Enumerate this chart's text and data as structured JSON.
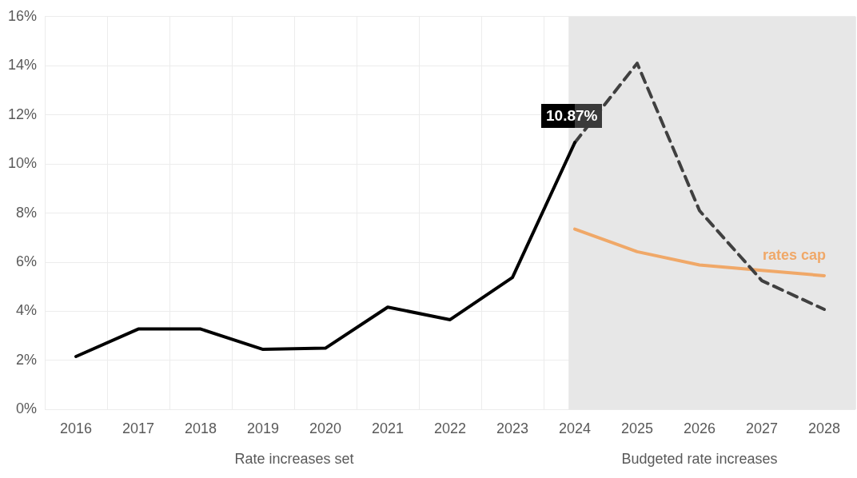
{
  "chart_data": {
    "type": "line",
    "categories": [
      "2016",
      "2017",
      "2018",
      "2019",
      "2020",
      "2021",
      "2022",
      "2023",
      "2024",
      "2025",
      "2026",
      "2027",
      "2028"
    ],
    "series": [
      {
        "color": "#000000",
        "line_style": "solid",
        "values": [
          2.16,
          3.28,
          3.28,
          2.45,
          2.5,
          4.17,
          3.66,
          5.38,
          10.87,
          null,
          null,
          null,
          null
        ]
      },
      {
        "color": "#404040",
        "line_style": "dashed",
        "values": [
          null,
          null,
          null,
          null,
          null,
          null,
          null,
          null,
          10.87,
          14.1,
          8.1,
          5.25,
          4.08
        ]
      },
      {
        "name": "rates cap",
        "color": "#f0a868",
        "line_style": "solid",
        "values": [
          null,
          null,
          null,
          null,
          null,
          null,
          null,
          null,
          7.35,
          6.43,
          5.89,
          5.67,
          5.45
        ]
      }
    ],
    "ylim": [
      0,
      16
    ],
    "yticks": [
      {
        "value": 0,
        "label": "0%"
      },
      {
        "value": 2,
        "label": "2%"
      },
      {
        "value": 4,
        "label": "4%"
      },
      {
        "value": 6,
        "label": "6%"
      },
      {
        "value": 8,
        "label": "8%"
      },
      {
        "value": 10,
        "label": "10%"
      },
      {
        "value": 12,
        "label": "12%"
      },
      {
        "value": 14,
        "label": "14%"
      },
      {
        "value": 16,
        "label": "16%"
      }
    ],
    "grid": true,
    "legend": false,
    "marker": "none",
    "bands": [
      {
        "axis": "x",
        "from": "2024",
        "to": "2028",
        "color": "#e7e7e7"
      }
    ],
    "annotations": [
      "Rate increases set",
      "Budgeted rate increases",
      {
        "text": "10.87%",
        "x": "2024",
        "y": 10.87
      }
    ]
  }
}
